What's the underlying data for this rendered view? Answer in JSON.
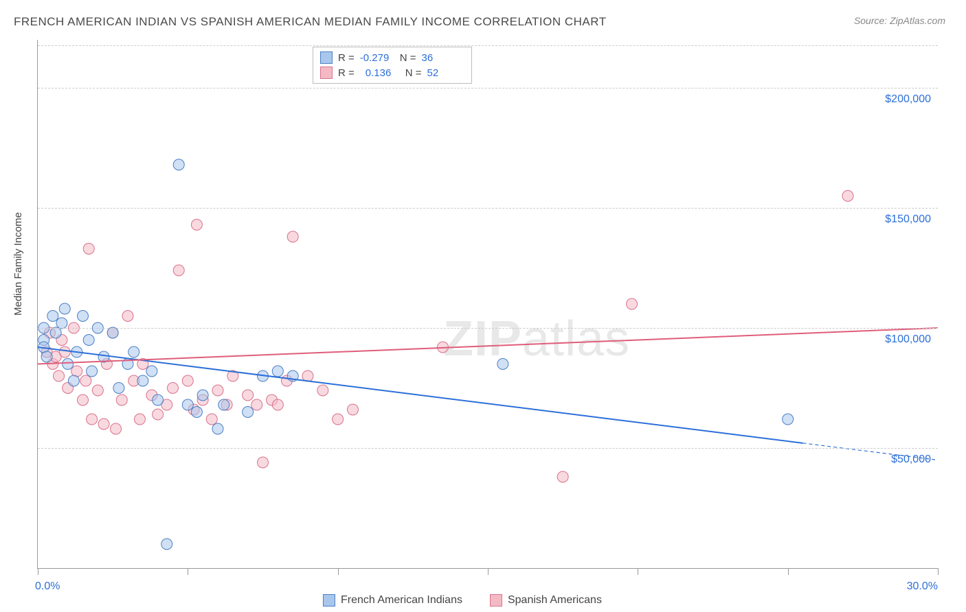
{
  "title": "FRENCH AMERICAN INDIAN VS SPANISH AMERICAN MEDIAN FAMILY INCOME CORRELATION CHART",
  "source": "Source: ZipAtlas.com",
  "watermark": {
    "prefix": "ZIP",
    "suffix": "atlas"
  },
  "ylabel": "Median Family Income",
  "chart": {
    "type": "scatter",
    "background_color": "#ffffff",
    "grid_color": "#cccccc",
    "xlim": [
      0,
      30
    ],
    "ylim": [
      0,
      220000
    ],
    "xticks": [
      0,
      5,
      10,
      15,
      20,
      25,
      30
    ],
    "xlabels": {
      "0": "0.0%",
      "30": "30.0%"
    },
    "yticks": [
      50000,
      100000,
      150000,
      200000
    ],
    "ylabels": {
      "50000": "$50,000",
      "100000": "$100,000",
      "150000": "$150,000",
      "200000": "$200,000"
    },
    "marker_radius": 8,
    "marker_opacity": 0.55,
    "series": [
      {
        "name": "French American Indians",
        "fill_color": "#a9c6ec",
        "stroke_color": "#4a7fc4",
        "stats": {
          "R": "-0.279",
          "N": "36"
        },
        "trend": {
          "x1": 0,
          "y1": 92000,
          "x2": 30,
          "y2": 45000,
          "solid_until_x": 25.5,
          "color": "#2b6fd8",
          "width": 2
        },
        "points": [
          {
            "x": 0.2,
            "y": 95000
          },
          {
            "x": 0.2,
            "y": 100000
          },
          {
            "x": 0.2,
            "y": 92000
          },
          {
            "x": 0.3,
            "y": 88000
          },
          {
            "x": 0.5,
            "y": 105000
          },
          {
            "x": 0.6,
            "y": 98000
          },
          {
            "x": 0.8,
            "y": 102000
          },
          {
            "x": 0.9,
            "y": 108000
          },
          {
            "x": 1.0,
            "y": 85000
          },
          {
            "x": 1.2,
            "y": 78000
          },
          {
            "x": 1.3,
            "y": 90000
          },
          {
            "x": 1.5,
            "y": 105000
          },
          {
            "x": 1.7,
            "y": 95000
          },
          {
            "x": 1.8,
            "y": 82000
          },
          {
            "x": 2.0,
            "y": 100000
          },
          {
            "x": 2.2,
            "y": 88000
          },
          {
            "x": 2.5,
            "y": 98000
          },
          {
            "x": 2.7,
            "y": 75000
          },
          {
            "x": 3.0,
            "y": 85000
          },
          {
            "x": 3.2,
            "y": 90000
          },
          {
            "x": 3.5,
            "y": 78000
          },
          {
            "x": 3.8,
            "y": 82000
          },
          {
            "x": 4.0,
            "y": 70000
          },
          {
            "x": 4.3,
            "y": 10000
          },
          {
            "x": 4.7,
            "y": 168000
          },
          {
            "x": 5.0,
            "y": 68000
          },
          {
            "x": 5.3,
            "y": 65000
          },
          {
            "x": 5.5,
            "y": 72000
          },
          {
            "x": 6.0,
            "y": 58000
          },
          {
            "x": 6.2,
            "y": 68000
          },
          {
            "x": 7.0,
            "y": 65000
          },
          {
            "x": 7.5,
            "y": 80000
          },
          {
            "x": 8.0,
            "y": 82000
          },
          {
            "x": 8.5,
            "y": 80000
          },
          {
            "x": 15.5,
            "y": 85000
          },
          {
            "x": 25.0,
            "y": 62000
          }
        ]
      },
      {
        "name": "Spanish Americans",
        "fill_color": "#f3bac6",
        "stroke_color": "#d9718a",
        "stats": {
          "R": "0.136",
          "N": "52"
        },
        "trend": {
          "x1": 0,
          "y1": 85000,
          "x2": 30,
          "y2": 100000,
          "solid_until_x": 30,
          "color": "#de5d7a",
          "width": 2
        },
        "points": [
          {
            "x": 0.3,
            "y": 90000
          },
          {
            "x": 0.4,
            "y": 98000
          },
          {
            "x": 0.5,
            "y": 85000
          },
          {
            "x": 0.6,
            "y": 88000
          },
          {
            "x": 0.7,
            "y": 80000
          },
          {
            "x": 0.8,
            "y": 95000
          },
          {
            "x": 0.9,
            "y": 90000
          },
          {
            "x": 1.0,
            "y": 75000
          },
          {
            "x": 1.2,
            "y": 100000
          },
          {
            "x": 1.3,
            "y": 82000
          },
          {
            "x": 1.5,
            "y": 70000
          },
          {
            "x": 1.6,
            "y": 78000
          },
          {
            "x": 1.7,
            "y": 133000
          },
          {
            "x": 1.8,
            "y": 62000
          },
          {
            "x": 2.0,
            "y": 74000
          },
          {
            "x": 2.2,
            "y": 60000
          },
          {
            "x": 2.3,
            "y": 85000
          },
          {
            "x": 2.5,
            "y": 98000
          },
          {
            "x": 2.6,
            "y": 58000
          },
          {
            "x": 2.8,
            "y": 70000
          },
          {
            "x": 3.0,
            "y": 105000
          },
          {
            "x": 3.2,
            "y": 78000
          },
          {
            "x": 3.4,
            "y": 62000
          },
          {
            "x": 3.5,
            "y": 85000
          },
          {
            "x": 3.8,
            "y": 72000
          },
          {
            "x": 4.0,
            "y": 64000
          },
          {
            "x": 4.3,
            "y": 68000
          },
          {
            "x": 4.5,
            "y": 75000
          },
          {
            "x": 4.7,
            "y": 124000
          },
          {
            "x": 5.0,
            "y": 78000
          },
          {
            "x": 5.2,
            "y": 66000
          },
          {
            "x": 5.3,
            "y": 143000
          },
          {
            "x": 5.5,
            "y": 70000
          },
          {
            "x": 5.8,
            "y": 62000
          },
          {
            "x": 6.0,
            "y": 74000
          },
          {
            "x": 6.3,
            "y": 68000
          },
          {
            "x": 6.5,
            "y": 80000
          },
          {
            "x": 7.0,
            "y": 72000
          },
          {
            "x": 7.3,
            "y": 68000
          },
          {
            "x": 7.5,
            "y": 44000
          },
          {
            "x": 7.8,
            "y": 70000
          },
          {
            "x": 8.0,
            "y": 68000
          },
          {
            "x": 8.3,
            "y": 78000
          },
          {
            "x": 8.5,
            "y": 138000
          },
          {
            "x": 9.0,
            "y": 80000
          },
          {
            "x": 9.5,
            "y": 74000
          },
          {
            "x": 10.0,
            "y": 62000
          },
          {
            "x": 10.5,
            "y": 66000
          },
          {
            "x": 13.5,
            "y": 92000
          },
          {
            "x": 17.5,
            "y": 38000
          },
          {
            "x": 19.8,
            "y": 110000
          },
          {
            "x": 27.0,
            "y": 155000
          }
        ]
      }
    ]
  },
  "legend": {
    "series1": "French American Indians",
    "series2": "Spanish Americans"
  }
}
